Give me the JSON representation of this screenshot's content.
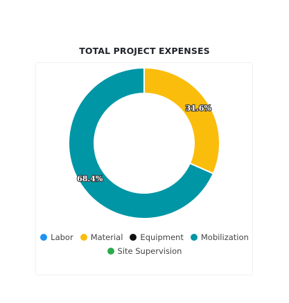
{
  "title": "TOTAL PROJECT EXPENSES",
  "colors": {
    "Labor": "#1e93f0",
    "Material": "#fbbd0c",
    "Equipment": "#111111",
    "Mobilization": "#0096a6",
    "Site Supervision": "#2cac4b"
  },
  "chart_data": {
    "type": "pie",
    "variant": "donut",
    "title": "TOTAL PROJECT EXPENSES",
    "categories": [
      "Labor",
      "Material",
      "Equipment",
      "Mobilization",
      "Site Supervision"
    ],
    "values": [
      0,
      31.6,
      0,
      68.4,
      0
    ],
    "data_labels": [
      "",
      "31.6%",
      "",
      "68.4%",
      ""
    ],
    "legend_position": "bottom"
  },
  "legend": {
    "rows": [
      [
        "Labor",
        "Material",
        "Equipment",
        "Mobilization"
      ],
      [
        "Site Supervision"
      ]
    ]
  }
}
